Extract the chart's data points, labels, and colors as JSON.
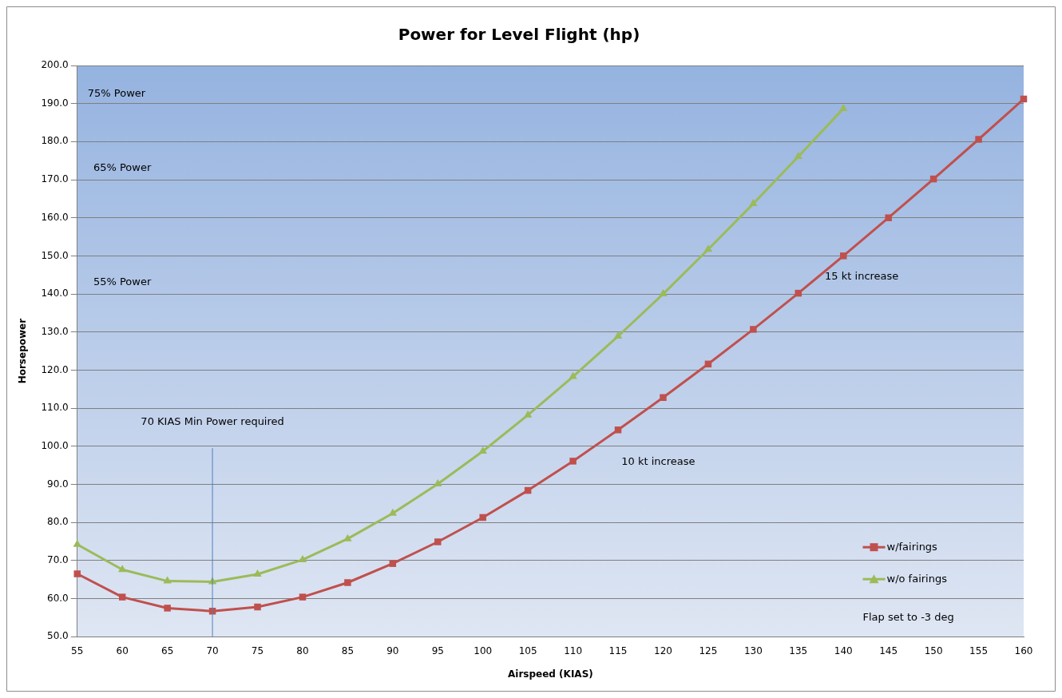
{
  "chart_data": {
    "type": "line",
    "title": "Power for Level Flight (hp)",
    "xlabel": "Airspeed (KIAS)",
    "ylabel": "Horsepower",
    "x": [
      55,
      60,
      65,
      70,
      75,
      80,
      85,
      90,
      95,
      100,
      105,
      110,
      115,
      120,
      125,
      130,
      135,
      140,
      145,
      150,
      155,
      160
    ],
    "series": [
      {
        "name": "w/fairings",
        "color": "#c0504d",
        "marker": "square",
        "values": [
          66.5,
          60.4,
          57.5,
          56.7,
          57.8,
          60.4,
          64.2,
          69.2,
          74.9,
          81.3,
          88.4,
          96.1,
          104.3,
          112.8,
          121.6,
          130.7,
          140.2,
          150.0,
          160.0,
          170.2,
          180.6,
          191.2
        ]
      },
      {
        "name": "w/o fairings",
        "color": "#9bbb59",
        "marker": "triangle",
        "values": [
          74.2,
          67.6,
          64.6,
          64.4,
          66.4,
          70.2,
          75.7,
          82.4,
          90.1,
          98.7,
          108.2,
          118.3,
          128.9,
          140.0,
          151.7,
          163.7,
          176.1,
          188.7,
          null,
          null,
          null,
          null
        ]
      }
    ],
    "xlim": [
      55,
      160
    ],
    "xticks": [
      55,
      60,
      65,
      70,
      75,
      80,
      85,
      90,
      95,
      100,
      105,
      110,
      115,
      120,
      125,
      130,
      135,
      140,
      145,
      150,
      155,
      160
    ],
    "ylim": [
      50,
      200
    ],
    "yticks": [
      {
        "value": 50,
        "label": "50.0"
      },
      {
        "value": 60,
        "label": "60.0"
      },
      {
        "value": 70,
        "label": "70.0"
      },
      {
        "value": 80,
        "label": "80.0"
      },
      {
        "value": 90,
        "label": "90.0"
      },
      {
        "value": 100,
        "label": "100.0"
      },
      {
        "value": 110,
        "label": "110.0"
      },
      {
        "value": 120,
        "label": "120.0"
      },
      {
        "value": 130,
        "label": "130.0"
      },
      {
        "value": 140,
        "label": "140.0"
      },
      {
        "value": 150,
        "label": "150.0"
      },
      {
        "value": 160,
        "label": "160.0"
      },
      {
        "value": 170,
        "label": "170.0"
      },
      {
        "value": 180,
        "label": "180.0"
      },
      {
        "value": 190,
        "label": "190.0"
      },
      {
        "value": 200,
        "label": "200.0"
      }
    ],
    "ref_lines": [
      {
        "axis": "x",
        "value": 70,
        "label": "70 KIAS Min Power required",
        "color": "#4f81bd"
      }
    ],
    "annotations": [
      "75% Power",
      "65% Power",
      "55% Power",
      "10 kt increase",
      "15 kt increase",
      "Flap set to -3 deg"
    ],
    "grid": "y",
    "legend": "bottom right",
    "line_style": "solid"
  }
}
